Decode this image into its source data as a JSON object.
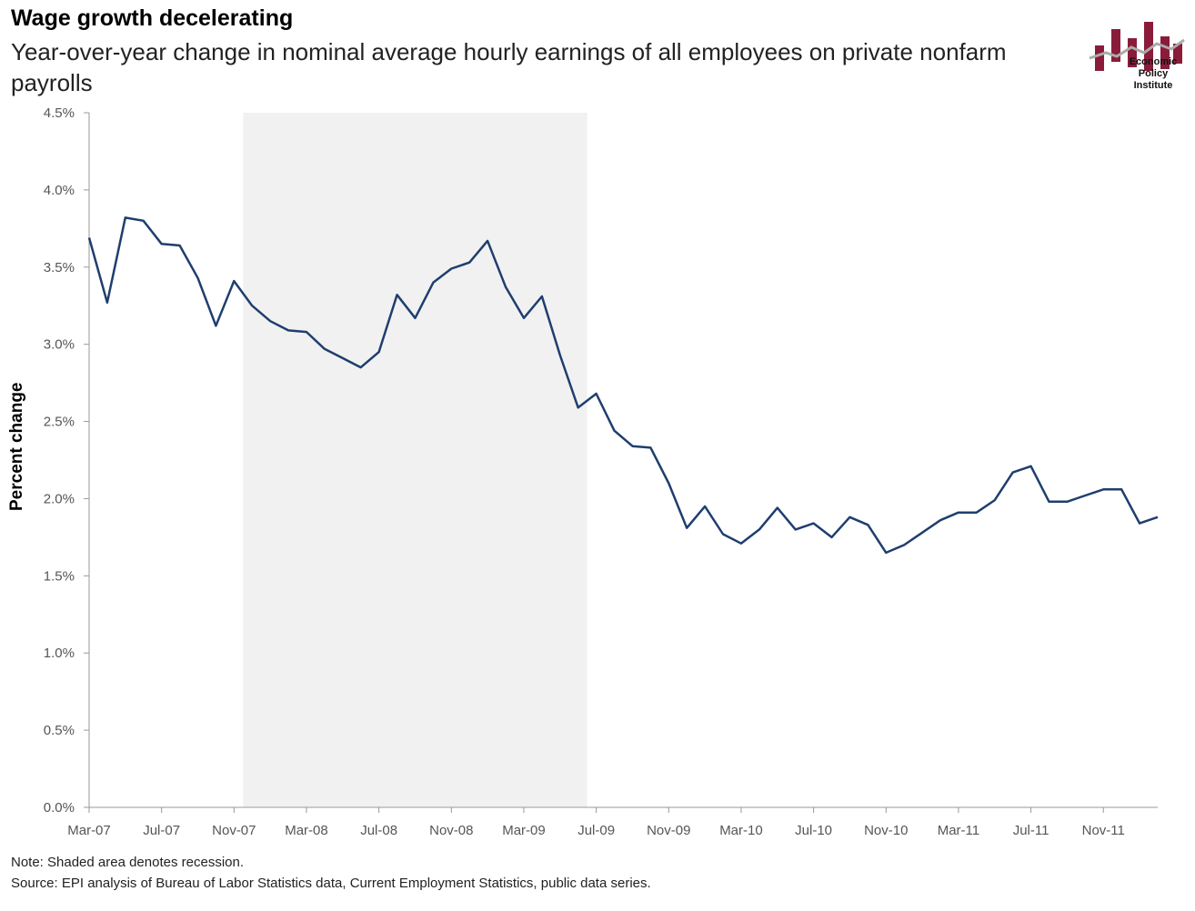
{
  "header": {
    "title": "Wage growth decelerating",
    "subtitle": "Year-over-year change in nominal average hourly earnings of all employees on private nonfarm payrolls"
  },
  "logo": {
    "lines": [
      "Economic",
      "Policy",
      "Institute"
    ],
    "color": "#8a1c3a"
  },
  "footer": {
    "note": "Note: Shaded area denotes recession.",
    "source": "Source: EPI analysis of Bureau of Labor Statistics data, Current Employment Statistics, public data series."
  },
  "chart_data": {
    "type": "line",
    "ylabel": "Percent change",
    "ylim": [
      0,
      4.5
    ],
    "yticks": [
      "0.0%",
      "0.5%",
      "1.0%",
      "1.5%",
      "2.0%",
      "2.5%",
      "3.0%",
      "3.5%",
      "4.0%",
      "4.5%"
    ],
    "xtick_labels": [
      "Mar-07",
      "Jul-07",
      "Nov-07",
      "Mar-08",
      "Jul-08",
      "Nov-08",
      "Mar-09",
      "Jul-09",
      "Nov-09",
      "Mar-10",
      "Jul-10",
      "Nov-10",
      "Mar-11",
      "Jul-11",
      "Nov-11"
    ],
    "recession_shading": {
      "start": "Dec-07",
      "end": "Jun-09"
    },
    "line_color": "#1f3e6e",
    "shade_color": "#f1f1f1",
    "series": [
      {
        "values": [
          3.69,
          3.27,
          3.82,
          3.8,
          3.65,
          3.64,
          3.43,
          3.12,
          3.41,
          3.25,
          3.15,
          3.09,
          3.08,
          2.97,
          2.91,
          2.85,
          2.95,
          3.32,
          3.17,
          3.4,
          3.49,
          3.53,
          3.67,
          3.37,
          3.17,
          3.31,
          2.93,
          2.59,
          2.68,
          2.44,
          2.34,
          2.33,
          2.1,
          1.81,
          1.95,
          1.77,
          1.71,
          1.8,
          1.94,
          1.8,
          1.84,
          1.75,
          1.88,
          1.83,
          1.65,
          1.7,
          1.78,
          1.86,
          1.91,
          1.91,
          1.99,
          2.17,
          2.21,
          1.98,
          1.98,
          2.02,
          2.06,
          2.06,
          1.84,
          1.88
        ]
      }
    ]
  }
}
